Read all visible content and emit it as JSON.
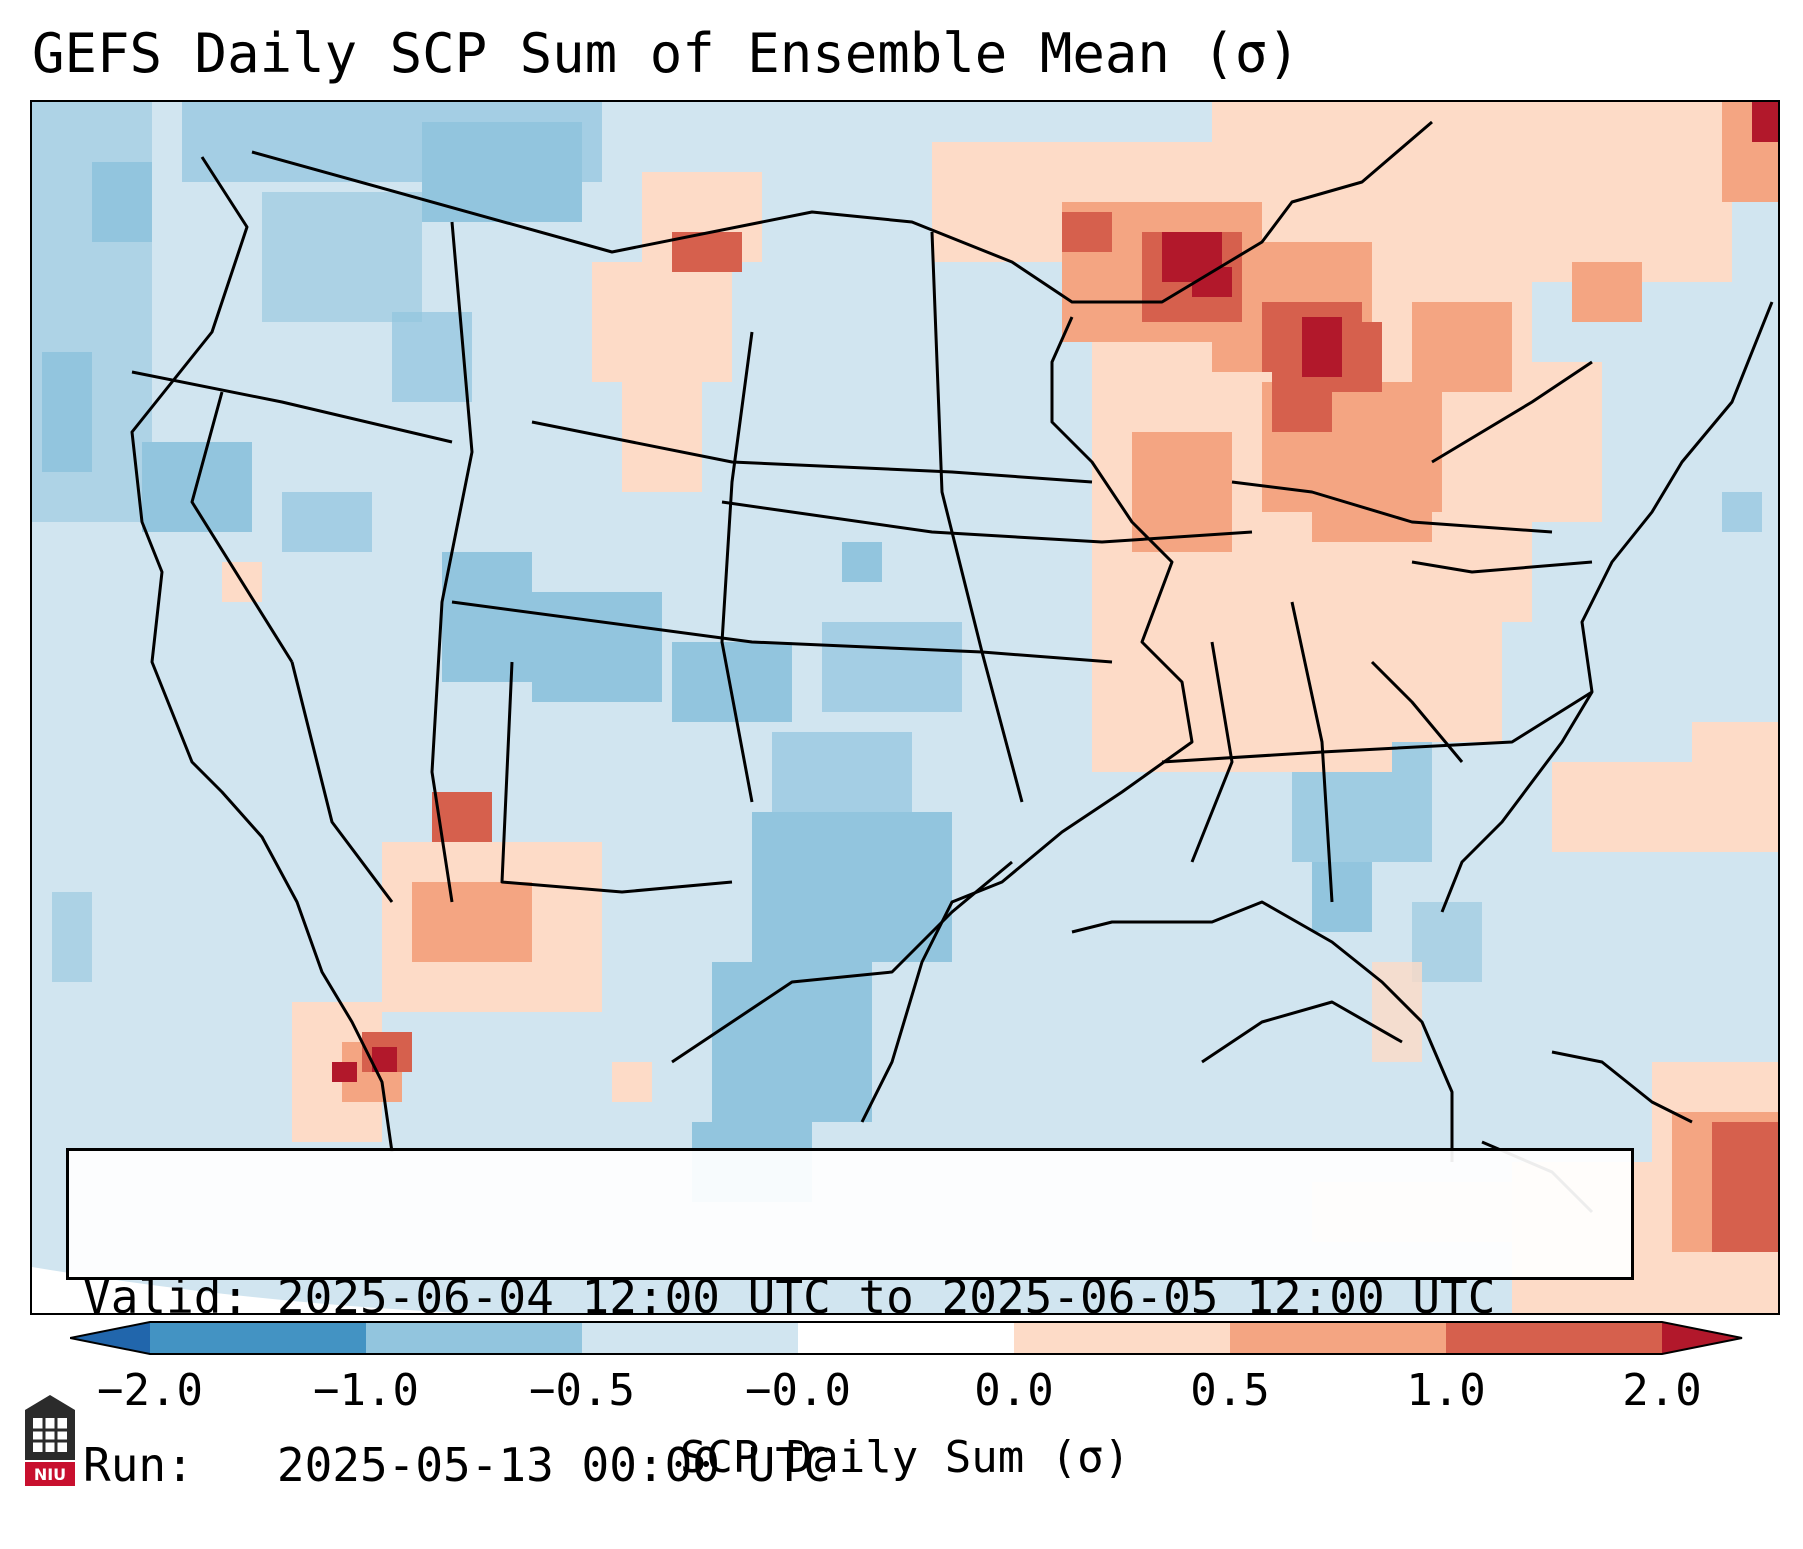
{
  "title": "GEFS Daily SCP Sum of Ensemble Mean (σ)",
  "valid_label": "Valid:",
  "valid_range": "2025-06-04 12:00 UTC to 2025-06-05 12:00 UTC",
  "run_label": "Run:",
  "run_time": "2025-05-13 00:00 UTC",
  "colorbar": {
    "label": "SCP Daily Sum (σ)",
    "ticks": [
      "−2.0",
      "−1.0",
      "−0.5",
      "−0.0",
      "0.0",
      "0.5",
      "1.0",
      "2.0"
    ],
    "bin_colors": [
      "#4393c3",
      "#92c5de",
      "#d1e5f0",
      "#fddbc7",
      "#f4a582",
      "#d6604d"
    ],
    "extend_low_color": "#2166ac",
    "extend_high_color": "#b2182b"
  },
  "map_colors": {
    "background": "#d1e5f0",
    "neg_moderate": "#92c5de",
    "pos_weak": "#fddbc7",
    "pos_moderate": "#f4a582",
    "pos_strong": "#d6604d",
    "pos_extreme": "#b2182b"
  },
  "logo": {
    "text": "NIU"
  }
}
